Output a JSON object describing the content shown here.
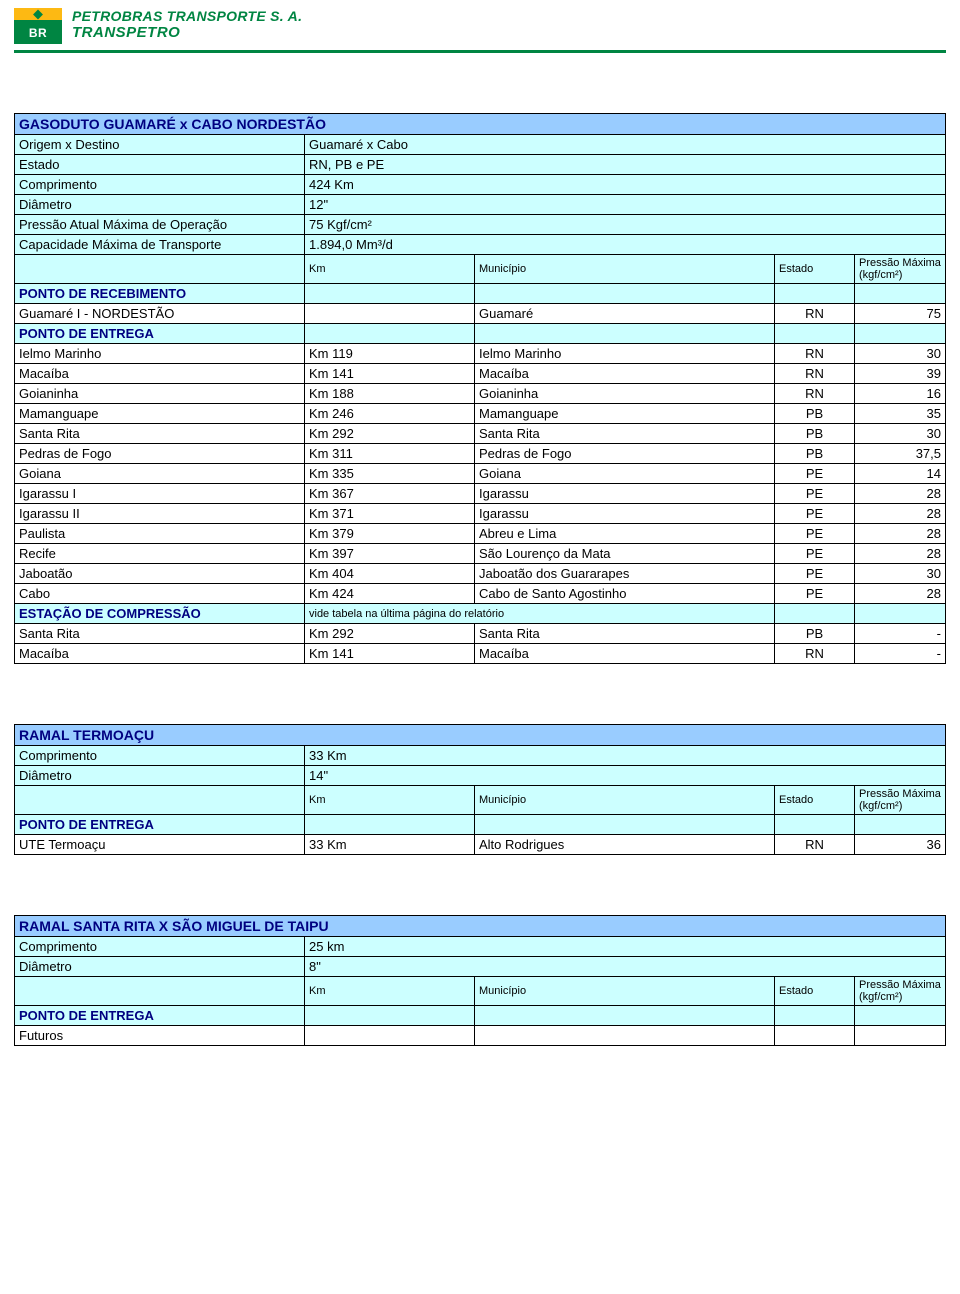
{
  "header": {
    "logo_letters": "BR",
    "company_line1": "PETROBRAS TRANSPORTE S. A.",
    "company_line2": "TRANSPETRO"
  },
  "colors": {
    "title_bg": "#99ccff",
    "cell_bg": "#ccffff",
    "text_navy": "#000080",
    "green": "#008542",
    "yellow": "#FDB913"
  },
  "table1": {
    "title": "GASODUTO GUAMARÉ x CABO NORDESTÃO",
    "spec_rows": [
      {
        "label": "Origem x Destino",
        "value": "Guamaré x Cabo"
      },
      {
        "label": "Estado",
        "value": "RN, PB e PE"
      },
      {
        "label": "Comprimento",
        "value": "424 Km"
      },
      {
        "label": "Diâmetro",
        "value": "12\""
      },
      {
        "label": "Pressão Atual Máxima de Operação",
        "value": "75 Kgf/cm²"
      },
      {
        "label": "Capacidade Máxima de Transporte",
        "value": "1.894,0 Mm³/d"
      }
    ],
    "col_headers": {
      "km": "Km",
      "mun": "Município",
      "est": "Estado",
      "pm1": "Pressão Máxima",
      "pm2": "(kgf/cm²)"
    },
    "section_receb": "PONTO DE RECEBIMENTO",
    "receb_rows": [
      {
        "label": "Guamaré I - NORDESTÃO",
        "km": "",
        "mun": "Guamaré",
        "est": "RN",
        "val": "75"
      }
    ],
    "section_entrega": "PONTO DE ENTREGA",
    "entrega_rows": [
      {
        "label": "Ielmo Marinho",
        "km": "Km 119",
        "mun": "Ielmo Marinho",
        "est": "RN",
        "val": "30"
      },
      {
        "label": "Macaíba",
        "km": "Km 141",
        "mun": "Macaíba",
        "est": "RN",
        "val": "39"
      },
      {
        "label": "Goianinha",
        "km": "Km 188",
        "mun": "Goianinha",
        "est": "RN",
        "val": "16"
      },
      {
        "label": "Mamanguape",
        "km": "Km 246",
        "mun": "Mamanguape",
        "est": "PB",
        "val": "35"
      },
      {
        "label": "Santa Rita",
        "km": "Km 292",
        "mun": "Santa Rita",
        "est": "PB",
        "val": "30"
      },
      {
        "label": "Pedras de Fogo",
        "km": "Km 311",
        "mun": "Pedras de Fogo",
        "est": "PB",
        "val": "37,5"
      },
      {
        "label": "Goiana",
        "km": "Km 335",
        "mun": "Goiana",
        "est": "PE",
        "val": "14"
      },
      {
        "label": "Igarassu I",
        "km": "Km 367",
        "mun": "Igarassu",
        "est": "PE",
        "val": "28"
      },
      {
        "label": "Igarassu II",
        "km": "Km 371",
        "mun": "Igarassu",
        "est": "PE",
        "val": "28"
      },
      {
        "label": "Paulista",
        "km": "Km 379",
        "mun": "Abreu e Lima",
        "est": "PE",
        "val": "28"
      },
      {
        "label": "Recife",
        "km": "Km 397",
        "mun": "São Lourenço da Mata",
        "est": "PE",
        "val": "28"
      },
      {
        "label": "Jaboatão",
        "km": "Km 404",
        "mun": "Jaboatão dos Guararapes",
        "est": "PE",
        "val": "30"
      },
      {
        "label": "Cabo",
        "km": "Km 424",
        "mun": "Cabo de Santo Agostinho",
        "est": "PE",
        "val": "28"
      }
    ],
    "section_comp": "ESTAÇÃO DE COMPRESSÃO",
    "comp_note": "vide tabela na última página do relatório",
    "comp_rows": [
      {
        "label": "Santa Rita",
        "km": "Km 292",
        "mun": "Santa Rita",
        "est": "PB",
        "val": "-"
      },
      {
        "label": "Macaíba",
        "km": "Km 141",
        "mun": "Macaíba",
        "est": "RN",
        "val": "-"
      }
    ]
  },
  "table2": {
    "title": "RAMAL TERMOAÇU",
    "spec_rows": [
      {
        "label": "Comprimento",
        "value": "33 Km"
      },
      {
        "label": "Diâmetro",
        "value": "14\""
      }
    ],
    "col_headers": {
      "km": "Km",
      "mun": "Município",
      "est": "Estado",
      "pm1": "Pressão Máxima",
      "pm2": "(kgf/cm²)"
    },
    "section_entrega": "PONTO DE ENTREGA",
    "entrega_rows": [
      {
        "label": "UTE Termoaçu",
        "km": "33 Km",
        "mun": "Alto Rodrigues",
        "est": "RN",
        "val": "36"
      }
    ]
  },
  "table3": {
    "title": "RAMAL SANTA RITA X SÃO MIGUEL DE TAIPU",
    "spec_rows": [
      {
        "label": "Comprimento",
        "value": "25 km"
      },
      {
        "label": "Diâmetro",
        "value": "8\""
      }
    ],
    "col_headers": {
      "km": "Km",
      "mun": "Município",
      "est": "Estado",
      "pm1": "Pressão Máxima",
      "pm2": "(kgf/cm²)"
    },
    "section_entrega": "PONTO DE ENTREGA",
    "futuros": "Futuros"
  }
}
